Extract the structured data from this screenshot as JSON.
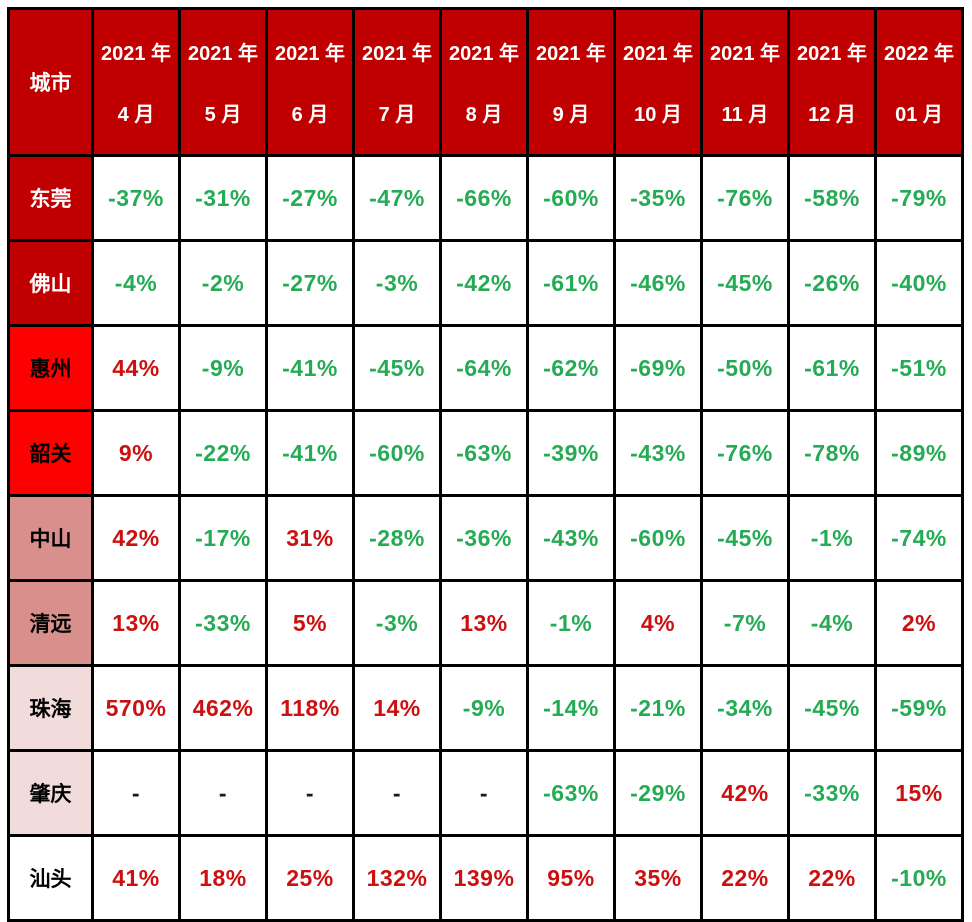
{
  "chart_data": {
    "type": "table",
    "corner_label": "城市",
    "columns": [
      {
        "year": "2021 年",
        "month": "4 月"
      },
      {
        "year": "2021 年",
        "month": "5 月"
      },
      {
        "year": "2021 年",
        "month": "6 月"
      },
      {
        "year": "2021 年",
        "month": "7 月"
      },
      {
        "year": "2021 年",
        "month": "8 月"
      },
      {
        "year": "2021 年",
        "month": "9 月"
      },
      {
        "year": "2021 年",
        "month": "10 月"
      },
      {
        "year": "2021 年",
        "month": "11 月"
      },
      {
        "year": "2021 年",
        "month": "12 月"
      },
      {
        "year": "2022 年",
        "month": "01 月"
      }
    ],
    "rows": [
      {
        "city": "东莞",
        "header_style": "dark-red",
        "values": [
          "-37%",
          "-31%",
          "-27%",
          "-47%",
          "-66%",
          "-60%",
          "-35%",
          "-76%",
          "-58%",
          "-79%"
        ]
      },
      {
        "city": "佛山",
        "header_style": "dark-red",
        "values": [
          "-4%",
          "-2%",
          "-27%",
          "-3%",
          "-42%",
          "-61%",
          "-46%",
          "-45%",
          "-26%",
          "-40%"
        ]
      },
      {
        "city": "惠州",
        "header_style": "bright-red",
        "values": [
          "44%",
          "-9%",
          "-41%",
          "-45%",
          "-64%",
          "-62%",
          "-69%",
          "-50%",
          "-61%",
          "-51%"
        ]
      },
      {
        "city": "韶关",
        "header_style": "bright-red",
        "values": [
          "9%",
          "-22%",
          "-41%",
          "-60%",
          "-63%",
          "-39%",
          "-43%",
          "-76%",
          "-78%",
          "-89%"
        ]
      },
      {
        "city": "中山",
        "header_style": "rose",
        "values": [
          "42%",
          "-17%",
          "31%",
          "-28%",
          "-36%",
          "-43%",
          "-60%",
          "-45%",
          "-1%",
          "-74%"
        ]
      },
      {
        "city": "清远",
        "header_style": "rose",
        "values": [
          "13%",
          "-33%",
          "5%",
          "-3%",
          "13%",
          "-1%",
          "4%",
          "-7%",
          "-4%",
          "2%"
        ]
      },
      {
        "city": "珠海",
        "header_style": "light-pink",
        "values": [
          "570%",
          "462%",
          "118%",
          "14%",
          "-9%",
          "-14%",
          "-21%",
          "-34%",
          "-45%",
          "-59%"
        ]
      },
      {
        "city": "肇庆",
        "header_style": "light-pink",
        "values": [
          "-",
          "-",
          "-",
          "-",
          "-",
          "-63%",
          "-29%",
          "42%",
          "-33%",
          "15%"
        ]
      },
      {
        "city": "汕头",
        "header_style": "white",
        "values": [
          "41%",
          "18%",
          "25%",
          "132%",
          "139%",
          "95%",
          "35%",
          "22%",
          "22%",
          "-10%"
        ]
      }
    ]
  },
  "colors": {
    "header_bg": "#C00000",
    "dark_red_bg": "#C00000",
    "bright_red_bg": "#FD0000",
    "rose_bg": "#D9908C",
    "light_pink_bg": "#F2DCDB",
    "positive_text": "#CC1010",
    "negative_text": "#26AB55",
    "dash_text": "#1A1A1A",
    "border": "#000000"
  }
}
